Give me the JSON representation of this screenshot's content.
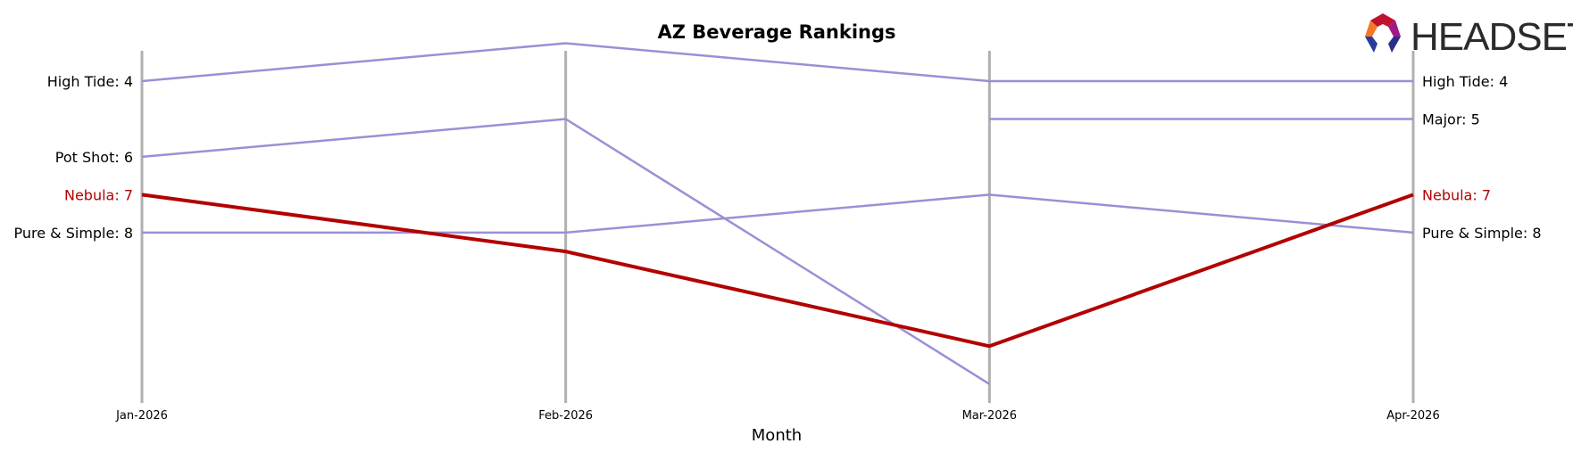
{
  "chart_data": {
    "type": "line",
    "title": "AZ Beverage Rankings",
    "xlabel": "Month",
    "ylabel": "",
    "x": [
      "Jan-2026",
      "Feb-2026",
      "Mar-2026",
      "Apr-2026"
    ],
    "y_inverted": true,
    "ylim": [
      12.5,
      3.2
    ],
    "grid": false,
    "highlight_color": "#b30000",
    "series_color": "#9b8fd6",
    "series": [
      {
        "name": "High Tide",
        "values": [
          4,
          3,
          4,
          4
        ]
      },
      {
        "name": "Major",
        "values": [
          null,
          null,
          5,
          5
        ]
      },
      {
        "name": "Pot Shot",
        "values": [
          6,
          5,
          12,
          null
        ]
      },
      {
        "name": "Nebula",
        "values": [
          7,
          8.5,
          11,
          7
        ],
        "highlight": true
      },
      {
        "name": "Pure & Simple",
        "values": [
          8,
          8,
          7,
          8
        ]
      }
    ],
    "left_labels": [
      {
        "text": "High Tide: 4",
        "rank": 4,
        "highlight": false
      },
      {
        "text": "Pot Shot: 6",
        "rank": 6,
        "highlight": false
      },
      {
        "text": "Nebula: 7",
        "rank": 7,
        "highlight": true
      },
      {
        "text": "Pure & Simple: 8",
        "rank": 8,
        "highlight": false
      }
    ],
    "right_labels": [
      {
        "text": "High Tide: 4",
        "rank": 4,
        "highlight": false
      },
      {
        "text": "Major: 5",
        "rank": 5,
        "highlight": false
      },
      {
        "text": "Nebula: 7",
        "rank": 7,
        "highlight": true
      },
      {
        "text": "Pure & Simple: 8",
        "rank": 8,
        "highlight": false
      }
    ]
  },
  "logo": {
    "text": "HEADSET",
    "icon": "headset-hexagon-logo-icon"
  }
}
